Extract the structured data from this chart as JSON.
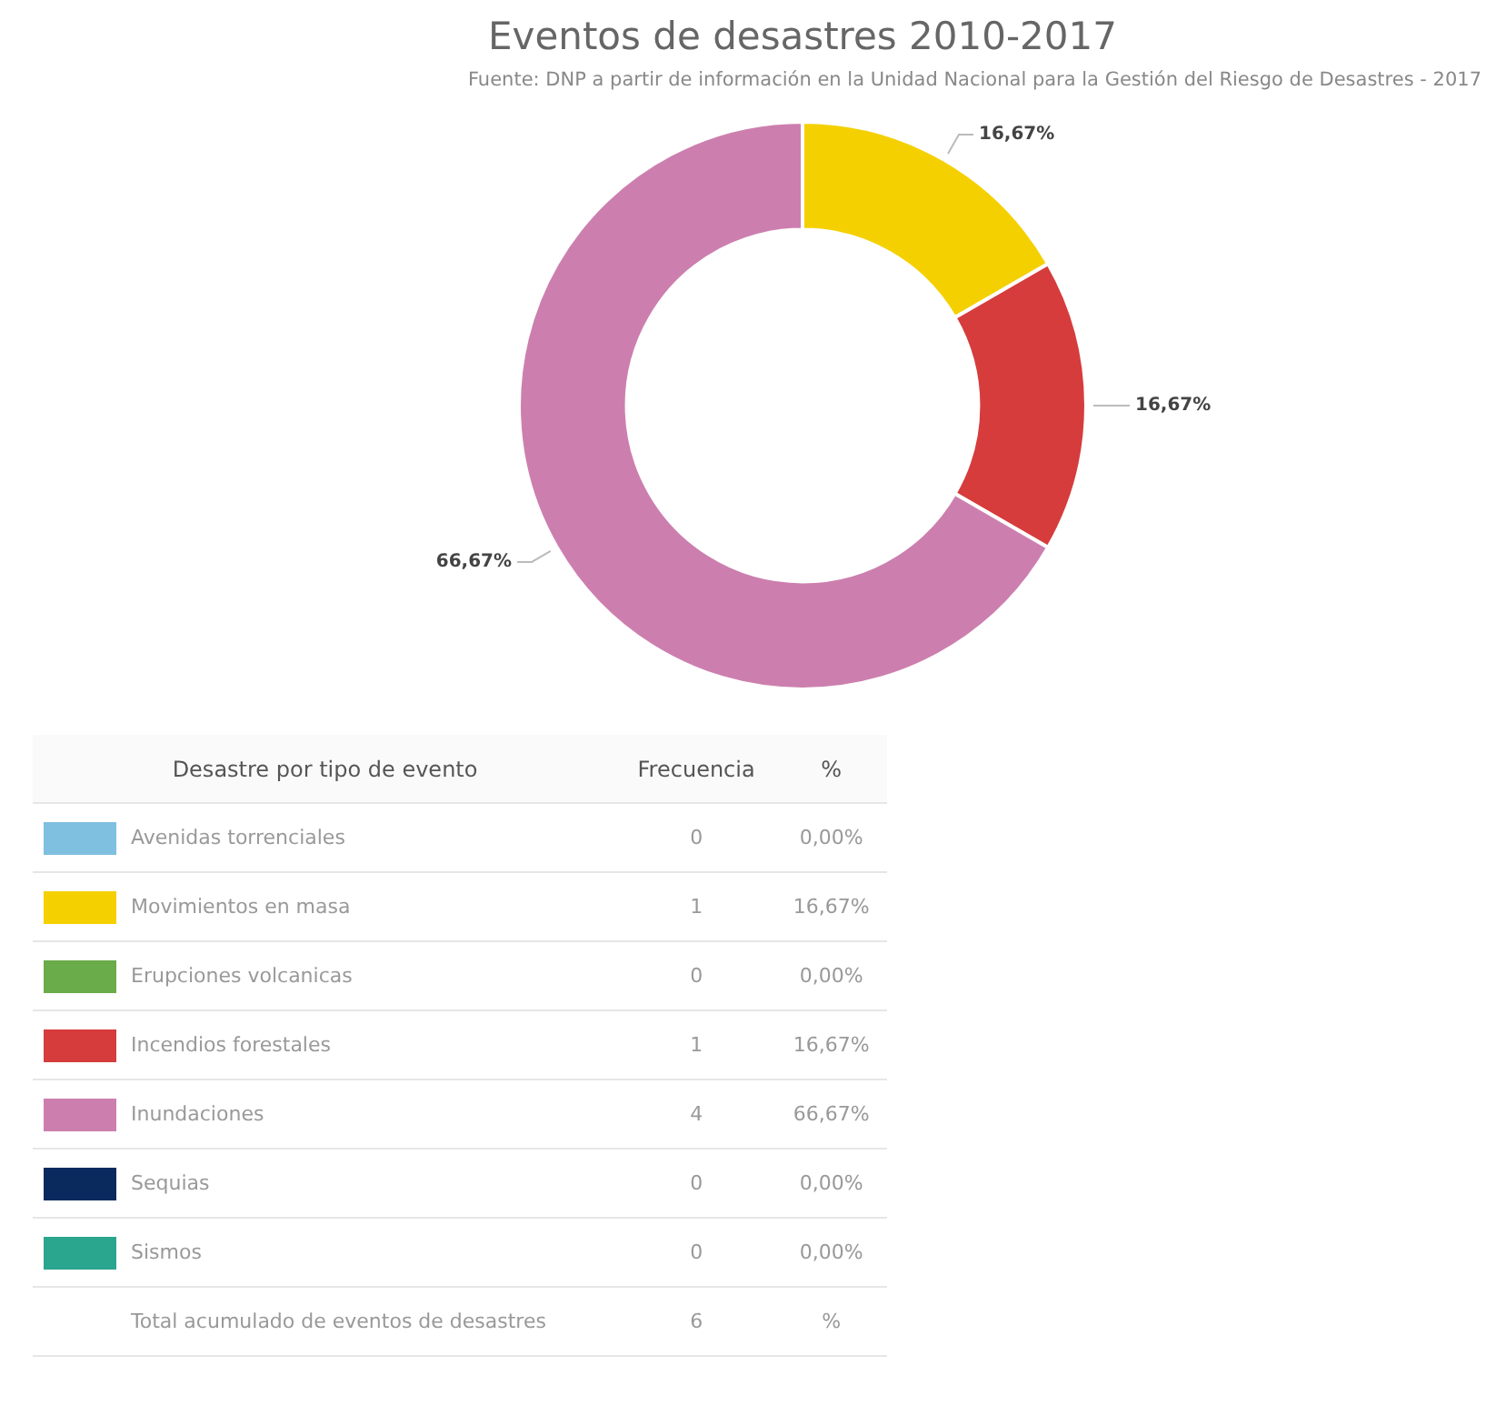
{
  "chart_data": {
    "type": "donut",
    "title": "Eventos de desastres 2010-2017",
    "subtitle": "Fuente: DNP a partir de información en la Unidad Nacional para la Gestión del Riesgo de Desastres - 2017",
    "categories": [
      "Avenidas torrenciales",
      "Movimientos en masa",
      "Erupciones volcanicas",
      "Incendios forestales",
      "Inundaciones",
      "Sequias",
      "Sismos"
    ],
    "values": [
      0,
      16.67,
      0,
      16.67,
      66.67,
      0,
      0
    ],
    "legend": "bottom left",
    "colors": [
      "#7fbfe0",
      "#f5d000",
      "#6aab4a",
      "#d63c3c",
      "#cc7fae",
      "#0a2a5e",
      "#2aa58e"
    ],
    "value_labels": [
      "0,00%",
      "16,67%",
      "0,00%",
      "16,67%",
      "66,67%",
      "0,00%",
      "0,00%"
    ],
    "data_labels": true,
    "totals": [
      "6"
    ],
    "annotations": [
      "Desastre por tipo de evento",
      "Frecuencia",
      "%",
      "Total acumulado de eventos de desastres",
      "%",
      "0",
      "1",
      "0",
      "1",
      "4",
      "0",
      "0"
    ]
  }
}
